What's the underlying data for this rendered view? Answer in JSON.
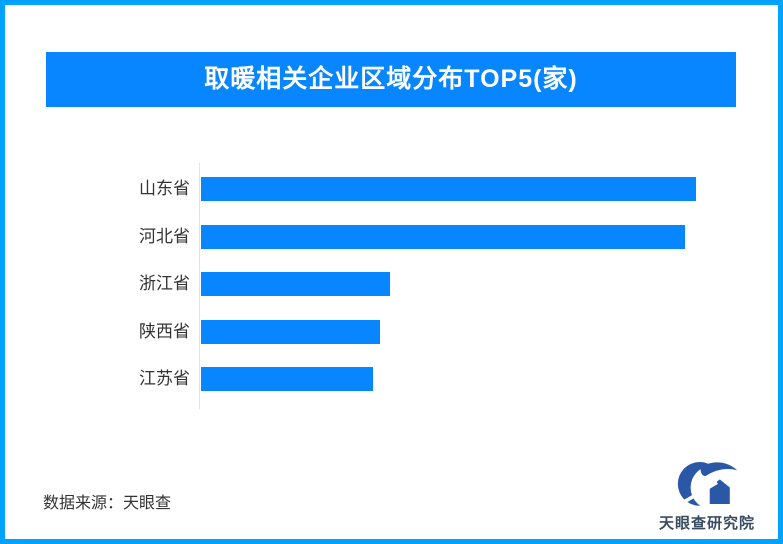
{
  "page": {
    "border_color": "#00a2ff",
    "background": "#ffffff"
  },
  "header": {
    "title": "取暖相关企业区域分布TOP5(家)",
    "background": "#0886ff",
    "text_color": "#ffffff"
  },
  "chart_data": {
    "type": "bar",
    "orientation": "horizontal",
    "title": "取暖相关企业区域分布TOP5(家)",
    "unit": "家",
    "categories": [
      "山东省",
      "河北省",
      "浙江省",
      "陕西省",
      "江苏省"
    ],
    "values": [
      100,
      97.8,
      38.2,
      36.2,
      34.7
    ],
    "values_are_relative_percent_of_max": true,
    "value_labels_shown": false,
    "gridlines": false,
    "bar_color": "#0886ff",
    "axis_line_color": "#e3e3e3",
    "label_color": "#333333"
  },
  "footer": {
    "source_text": "数据来源：天眼查"
  },
  "logo": {
    "text": "天眼查研究院",
    "mark_color": "#2b57a7",
    "text_color": "#3a4c61"
  }
}
